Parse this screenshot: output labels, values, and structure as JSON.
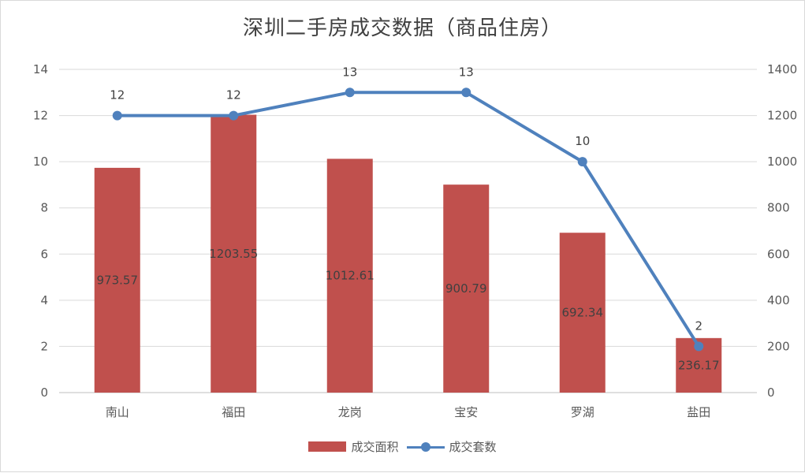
{
  "chart_data": {
    "type": "bar",
    "title": "深圳二手房成交数据（商品住房）",
    "categories": [
      "南山",
      "福田",
      "龙岗",
      "宝安",
      "罗湖",
      "盐田"
    ],
    "left_axis": {
      "ylim": [
        0,
        14
      ],
      "ticks": [
        0,
        2,
        4,
        6,
        8,
        10,
        12,
        14
      ]
    },
    "right_axis": {
      "ylim": [
        0,
        1400
      ],
      "ticks": [
        0,
        200,
        400,
        600,
        800,
        1000,
        1200,
        1400
      ]
    },
    "series": [
      {
        "name": "成交面积",
        "type": "bar",
        "axis": "right",
        "color": "#C0504D",
        "values": [
          973.57,
          1203.55,
          1012.61,
          900.79,
          692.34,
          236.17
        ],
        "labels": [
          "973.57",
          "1203.55",
          "1012.61",
          "900.79",
          "692.34",
          "236.17"
        ]
      },
      {
        "name": "成交套数",
        "type": "line",
        "axis": "left",
        "color": "#4F81BD",
        "values": [
          12,
          12,
          13,
          13,
          10,
          2
        ],
        "labels": [
          "12",
          "12",
          "13",
          "13",
          "10",
          "2"
        ]
      }
    ],
    "grid": true,
    "legend": "bottom"
  }
}
